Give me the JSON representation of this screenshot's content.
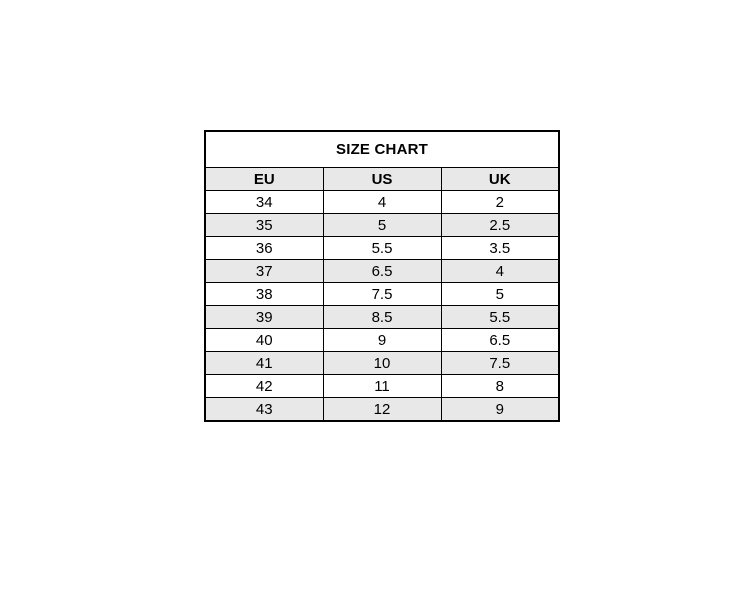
{
  "size_chart": {
    "title": "SIZE CHART",
    "columns": {
      "eu": "EU",
      "us": "US",
      "uk": "UK"
    },
    "rows": [
      {
        "eu": "34",
        "us": "4",
        "uk": "2"
      },
      {
        "eu": "35",
        "us": "5",
        "uk": "2.5"
      },
      {
        "eu": "36",
        "us": "5.5",
        "uk": "3.5"
      },
      {
        "eu": "37",
        "us": "6.5",
        "uk": "4"
      },
      {
        "eu": "38",
        "us": "7.5",
        "uk": "5"
      },
      {
        "eu": "39",
        "us": "8.5",
        "uk": "5.5"
      },
      {
        "eu": "40",
        "us": "9",
        "uk": "6.5"
      },
      {
        "eu": "41",
        "us": "10",
        "uk": "7.5"
      },
      {
        "eu": "42",
        "us": "11",
        "uk": "8"
      },
      {
        "eu": "43",
        "us": "12",
        "uk": "9"
      }
    ],
    "colors": {
      "border": "#000000",
      "header_bg": "#e8e8e8",
      "stripe_bg": "#e8e8e8",
      "row_bg": "#ffffff",
      "text": "#000000"
    }
  },
  "chart_data": {
    "type": "table",
    "title": "SIZE CHART",
    "columns": [
      "EU",
      "US",
      "UK"
    ],
    "rows": [
      [
        34,
        4,
        2
      ],
      [
        35,
        5,
        2.5
      ],
      [
        36,
        5.5,
        3.5
      ],
      [
        37,
        6.5,
        4
      ],
      [
        38,
        7.5,
        5
      ],
      [
        39,
        8.5,
        5.5
      ],
      [
        40,
        9,
        6.5
      ],
      [
        41,
        10,
        7.5
      ],
      [
        42,
        11,
        8
      ],
      [
        43,
        12,
        9
      ]
    ],
    "legend": "none",
    "grid": "full-borders"
  }
}
